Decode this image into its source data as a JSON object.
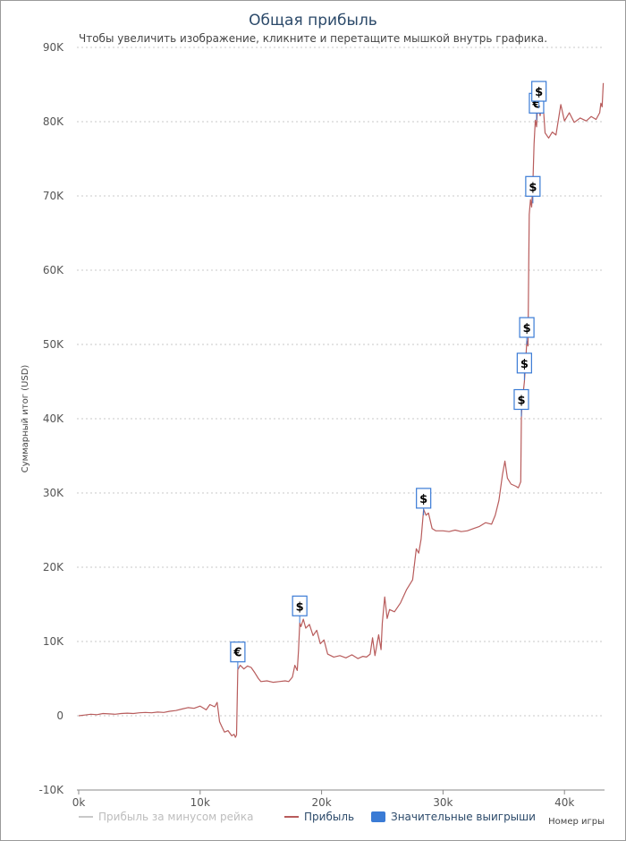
{
  "colors": {
    "profit": "#b85c5c",
    "no_rake": "#c8c8c8",
    "big_wins": "#3a7bd5",
    "grid": "#c8c8c8",
    "title": "#2c4a6a"
  },
  "chart_data": {
    "type": "line",
    "title": "Общая прибыль",
    "subtitle": "Чтобы увеличить изображение, кликните и перетащите мышкой внутрь графика.",
    "ylabel": "Суммарный итог (USD)",
    "xlabel": "Номер игры",
    "xlim": [
      0,
      43300
    ],
    "ylim": [
      -10000,
      90000
    ],
    "x_ticks": [
      0,
      10000,
      20000,
      30000,
      40000
    ],
    "x_tick_labels": [
      "0k",
      "10k",
      "20k",
      "30k",
      "40k"
    ],
    "y_ticks": [
      -10000,
      0,
      10000,
      20000,
      30000,
      40000,
      50000,
      60000,
      70000,
      80000,
      90000
    ],
    "y_tick_labels": [
      "-10K",
      "0",
      "10K",
      "20K",
      "30K",
      "40K",
      "50K",
      "60K",
      "70K",
      "80K",
      "90K"
    ],
    "legend": [
      {
        "name": "Прибыль за минусом рейка",
        "color": "#c8c8c8",
        "marker": "line"
      },
      {
        "name": "Прибыль",
        "color": "#b85c5c",
        "marker": "line"
      },
      {
        "name": "Значительные выигрыши",
        "color": "#3a7bd5",
        "marker": "box"
      }
    ],
    "series": [
      {
        "name": "Прибыль",
        "color": "#b85c5c",
        "points": [
          [
            0,
            0
          ],
          [
            500,
            100
          ],
          [
            1000,
            200
          ],
          [
            1500,
            150
          ],
          [
            2000,
            300
          ],
          [
            2500,
            250
          ],
          [
            3000,
            200
          ],
          [
            3500,
            300
          ],
          [
            4000,
            350
          ],
          [
            4500,
            300
          ],
          [
            5000,
            400
          ],
          [
            5500,
            450
          ],
          [
            6000,
            400
          ],
          [
            6500,
            500
          ],
          [
            7000,
            450
          ],
          [
            7500,
            600
          ],
          [
            8000,
            700
          ],
          [
            8500,
            900
          ],
          [
            9000,
            1100
          ],
          [
            9500,
            1000
          ],
          [
            10000,
            1300
          ],
          [
            10500,
            800
          ],
          [
            10800,
            1500
          ],
          [
            11200,
            1200
          ],
          [
            11400,
            1800
          ],
          [
            11500,
            500
          ],
          [
            11600,
            -800
          ],
          [
            11800,
            -1500
          ],
          [
            12000,
            -2200
          ],
          [
            12300,
            -2000
          ],
          [
            12600,
            -2700
          ],
          [
            12800,
            -2500
          ],
          [
            12900,
            -2900
          ],
          [
            13000,
            -2600
          ],
          [
            13100,
            6200
          ],
          [
            13300,
            6800
          ],
          [
            13600,
            6300
          ],
          [
            13900,
            6700
          ],
          [
            14200,
            6500
          ],
          [
            14500,
            5800
          ],
          [
            14800,
            5000
          ],
          [
            15000,
            4600
          ],
          [
            15500,
            4700
          ],
          [
            16000,
            4500
          ],
          [
            16500,
            4600
          ],
          [
            17000,
            4700
          ],
          [
            17300,
            4600
          ],
          [
            17600,
            5200
          ],
          [
            17800,
            6800
          ],
          [
            18000,
            6100
          ],
          [
            18100,
            8800
          ],
          [
            18200,
            12500
          ],
          [
            18300,
            12000
          ],
          [
            18500,
            13000
          ],
          [
            18700,
            11800
          ],
          [
            19000,
            12300
          ],
          [
            19300,
            10800
          ],
          [
            19600,
            11500
          ],
          [
            19900,
            9700
          ],
          [
            20200,
            10200
          ],
          [
            20500,
            8300
          ],
          [
            21000,
            7900
          ],
          [
            21500,
            8100
          ],
          [
            22000,
            7800
          ],
          [
            22500,
            8200
          ],
          [
            23000,
            7700
          ],
          [
            23400,
            8000
          ],
          [
            23700,
            7900
          ],
          [
            24000,
            8300
          ],
          [
            24200,
            10500
          ],
          [
            24400,
            8100
          ],
          [
            24700,
            10900
          ],
          [
            24900,
            8900
          ],
          [
            25000,
            12500
          ],
          [
            25200,
            16000
          ],
          [
            25400,
            13100
          ],
          [
            25600,
            14300
          ],
          [
            26000,
            14000
          ],
          [
            26500,
            15200
          ],
          [
            27000,
            17000
          ],
          [
            27500,
            18300
          ],
          [
            27800,
            22500
          ],
          [
            28000,
            21900
          ],
          [
            28200,
            23800
          ],
          [
            28400,
            27800
          ],
          [
            28600,
            27000
          ],
          [
            28800,
            27300
          ],
          [
            29100,
            25200
          ],
          [
            29400,
            24900
          ],
          [
            30000,
            24900
          ],
          [
            30500,
            24800
          ],
          [
            31000,
            25000
          ],
          [
            31500,
            24800
          ],
          [
            32000,
            24900
          ],
          [
            32500,
            25200
          ],
          [
            33000,
            25500
          ],
          [
            33500,
            26000
          ],
          [
            34000,
            25800
          ],
          [
            34300,
            27000
          ],
          [
            34600,
            29000
          ],
          [
            34900,
            32500
          ],
          [
            35100,
            34300
          ],
          [
            35300,
            32000
          ],
          [
            35600,
            31200
          ],
          [
            36000,
            30900
          ],
          [
            36200,
            30700
          ],
          [
            36400,
            31500
          ],
          [
            36450,
            40000
          ],
          [
            36500,
            42000
          ],
          [
            36700,
            45000
          ],
          [
            36800,
            47500
          ],
          [
            36900,
            50500
          ],
          [
            37000,
            49800
          ],
          [
            37050,
            59000
          ],
          [
            37100,
            67500
          ],
          [
            37200,
            69500
          ],
          [
            37300,
            68500
          ],
          [
            37400,
            71800
          ],
          [
            37500,
            77000
          ],
          [
            37600,
            80200
          ],
          [
            37700,
            79300
          ],
          [
            37800,
            82500
          ],
          [
            38000,
            80800
          ],
          [
            38200,
            83500
          ],
          [
            38400,
            78500
          ],
          [
            38700,
            77800
          ],
          [
            39000,
            78600
          ],
          [
            39300,
            78200
          ],
          [
            39700,
            82300
          ],
          [
            40000,
            80100
          ],
          [
            40400,
            81200
          ],
          [
            40800,
            79900
          ],
          [
            41300,
            80500
          ],
          [
            41800,
            80100
          ],
          [
            42200,
            80700
          ],
          [
            42600,
            80300
          ],
          [
            42900,
            81200
          ],
          [
            43000,
            82500
          ],
          [
            43100,
            82000
          ],
          [
            43200,
            85200
          ]
        ]
      }
    ],
    "big_wins": [
      {
        "x": 13100,
        "y": 6300,
        "symbol": "€"
      },
      {
        "x": 18200,
        "y": 12500,
        "symbol": "$"
      },
      {
        "x": 28400,
        "y": 27000,
        "symbol": "$"
      },
      {
        "x": 36450,
        "y": 40300,
        "symbol": "$"
      },
      {
        "x": 36700,
        "y": 45200,
        "symbol": "$"
      },
      {
        "x": 36900,
        "y": 50000,
        "symbol": "$"
      },
      {
        "x": 37400,
        "y": 69000,
        "symbol": "$"
      },
      {
        "x": 37700,
        "y": 80200,
        "symbol": "€"
      },
      {
        "x": 37900,
        "y": 81800,
        "symbol": "$"
      }
    ]
  }
}
